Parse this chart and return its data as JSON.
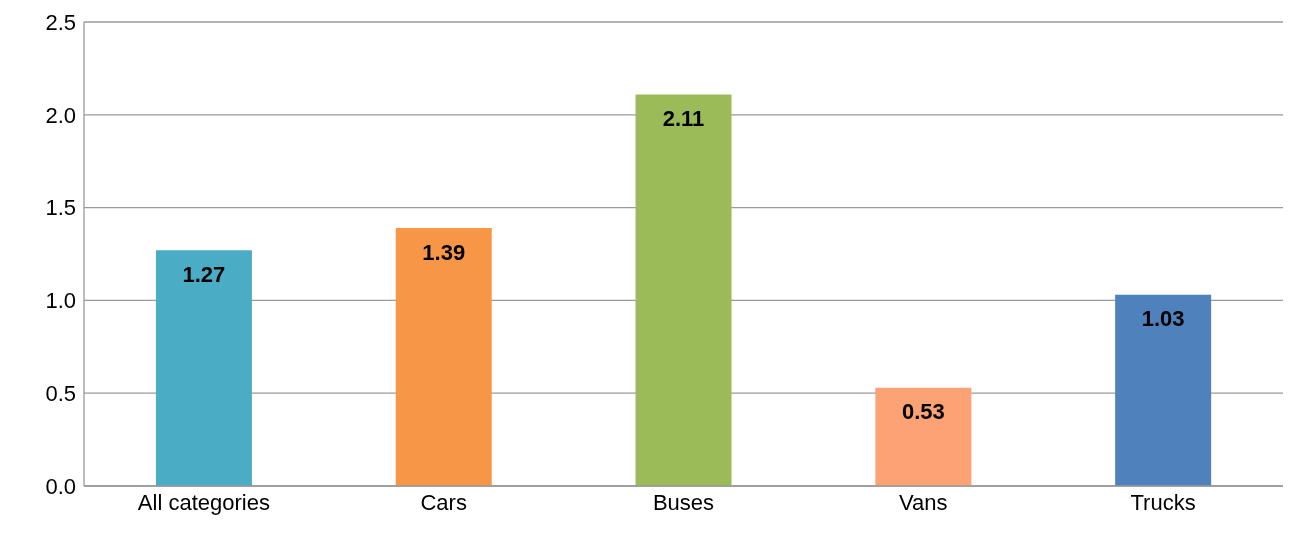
{
  "chart_data": {
    "type": "bar",
    "categories": [
      "All categories",
      "Cars",
      "Buses",
      "Vans",
      "Trucks"
    ],
    "values": [
      1.27,
      1.39,
      2.11,
      0.53,
      1.03
    ],
    "colors": [
      "#4bacc6",
      "#f79646",
      "#9bbb59",
      "#fca275",
      "#4f81bd"
    ],
    "ylim": [
      0,
      2.5
    ],
    "yticks": [
      {
        "value": 0,
        "label": "0.0"
      },
      {
        "value": 0.5,
        "label": "0.5"
      },
      {
        "value": 1,
        "label": "1.0"
      },
      {
        "value": 1.5,
        "label": "1.5"
      },
      {
        "value": 2,
        "label": "2.0"
      },
      {
        "value": 2.5,
        "label": "2.5"
      }
    ],
    "grid": "y",
    "data_labels": true
  }
}
